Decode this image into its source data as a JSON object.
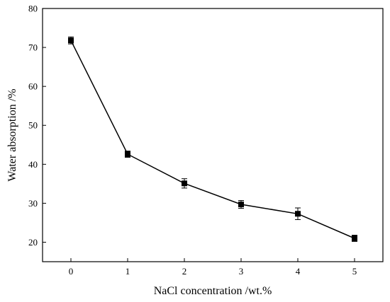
{
  "chart_data": {
    "type": "line",
    "xlabel": "NaCl concentration /wt.%",
    "ylabel": "Water absorption /%",
    "xlim": [
      -0.5,
      5.5
    ],
    "ylim": [
      15,
      80
    ],
    "xticks": [
      0,
      1,
      2,
      3,
      4,
      5
    ],
    "yticks": [
      20,
      30,
      40,
      50,
      60,
      70,
      80
    ],
    "grid": false,
    "legend": "none",
    "series": [
      {
        "x": [
          0,
          1,
          2,
          3,
          4,
          5
        ],
        "values": [
          71.8,
          42.6,
          35.1,
          29.7,
          27.3,
          21.0
        ],
        "error": [
          0.9,
          0.8,
          1.2,
          1.0,
          1.5,
          0.8
        ],
        "marker": "square",
        "color": "#000000"
      }
    ]
  }
}
